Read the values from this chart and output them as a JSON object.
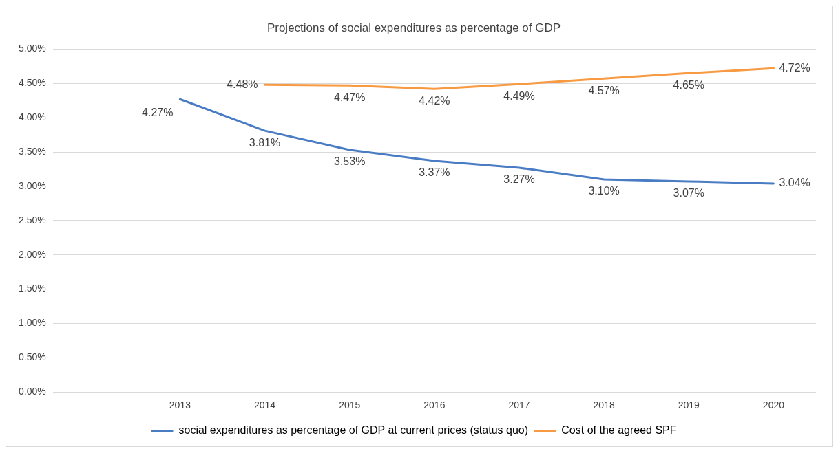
{
  "chart_data": {
    "type": "line",
    "title": "Projections of social expenditures as percentage of GDP",
    "categories": [
      null,
      "2013",
      "2014",
      "2015",
      "2016",
      "2017",
      "2018",
      "2019",
      "2020"
    ],
    "series": [
      {
        "name": "social expenditures as percentage of GDP at current prices (status quo)",
        "color": "#4a7cc4",
        "values": [
          null,
          4.27,
          3.81,
          3.53,
          3.37,
          3.27,
          3.1,
          3.07,
          3.04
        ],
        "value_labels": [
          null,
          "4.27%",
          "3.81%",
          "3.53%",
          "3.37%",
          "3.27%",
          "3.10%",
          "3.07%",
          "3.04%"
        ]
      },
      {
        "name": "Cost of the agreed SPF",
        "color": "#f79a42",
        "values": [
          null,
          null,
          4.48,
          4.47,
          4.42,
          4.49,
          4.57,
          4.65,
          4.72
        ],
        "value_labels": [
          null,
          null,
          "4.48%",
          "4.47%",
          "4.42%",
          "4.49%",
          "4.57%",
          "4.65%",
          "4.72%"
        ]
      }
    ],
    "ylim": [
      0,
      5
    ],
    "yticks": [
      {
        "value": 0,
        "label": "0.00%"
      },
      {
        "value": 0.5,
        "label": "0.50%"
      },
      {
        "value": 1,
        "label": "1.00%"
      },
      {
        "value": 1.5,
        "label": "1.50%"
      },
      {
        "value": 2,
        "label": "2.00%"
      },
      {
        "value": 2.5,
        "label": "2.50%"
      },
      {
        "value": 3,
        "label": "3.00%"
      },
      {
        "value": 3.5,
        "label": "3.50%"
      },
      {
        "value": 4,
        "label": "4.00%"
      },
      {
        "value": 4.5,
        "label": "4.50%"
      },
      {
        "value": 5,
        "label": "5.00%"
      }
    ],
    "grid": "y",
    "legend": "bottom",
    "marker": "none",
    "line_style": "solid"
  }
}
